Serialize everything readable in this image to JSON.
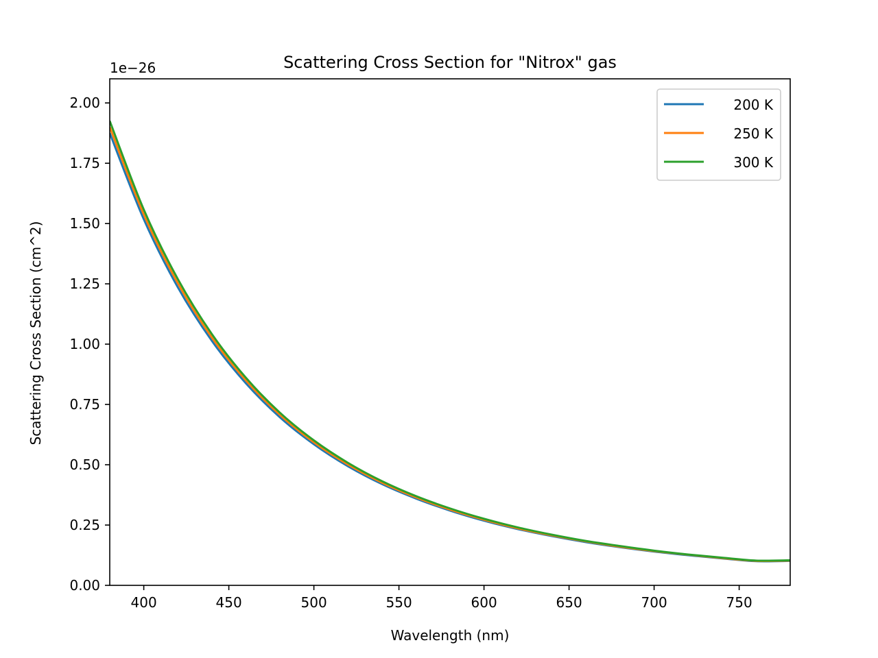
{
  "chart_data": {
    "type": "line",
    "title": "Scattering Cross Section for \"Nitrox\" gas",
    "xlabel": "Wavelength (nm)",
    "ylabel": "Scattering Cross Section (cm^2)",
    "y_offset_label": "1e−26",
    "xlim": [
      380,
      780
    ],
    "ylim": [
      0,
      2.1
    ],
    "xticks": [
      400,
      450,
      500,
      550,
      600,
      650,
      700,
      750
    ],
    "xtick_labels": [
      "400",
      "450",
      "500",
      "550",
      "600",
      "650",
      "700",
      "750"
    ],
    "yticks": [
      0,
      0.25,
      0.5,
      0.75,
      1.0,
      1.25,
      1.5,
      1.75,
      2.0
    ],
    "ytick_labels": [
      "0.00",
      "0.25",
      "0.50",
      "0.75",
      "1.00",
      "1.25",
      "1.50",
      "1.75",
      "2.00"
    ],
    "grid": false,
    "legend_position": "top-right",
    "x": [
      380,
      400,
      420,
      440,
      460,
      480,
      500,
      520,
      540,
      560,
      580,
      600,
      620,
      640,
      660,
      680,
      700,
      720,
      740,
      760,
      780
    ],
    "series": [
      {
        "name": "200 K",
        "color": "#1f77b4",
        "values": [
          1.875,
          1.518,
          1.236,
          1.014,
          0.838,
          0.697,
          0.585,
          0.494,
          0.42,
          0.36,
          0.31,
          0.268,
          0.233,
          0.204,
          0.179,
          0.158,
          0.14,
          0.125,
          0.1115,
          0.1,
          0.1012
        ]
      },
      {
        "name": "250 K",
        "color": "#ff7f0e",
        "values": [
          1.9,
          1.538,
          1.253,
          1.028,
          0.85,
          0.707,
          0.593,
          0.501,
          0.426,
          0.365,
          0.314,
          0.272,
          0.236,
          0.207,
          0.182,
          0.16,
          0.142,
          0.127,
          0.113,
          0.1014,
          0.1026
        ]
      },
      {
        "name": "300 K",
        "color": "#2ca02c",
        "values": [
          1.925,
          1.558,
          1.27,
          1.042,
          0.861,
          0.716,
          0.601,
          0.508,
          0.432,
          0.37,
          0.319,
          0.276,
          0.24,
          0.21,
          0.184,
          0.163,
          0.144,
          0.128,
          0.1146,
          0.1028,
          0.104
        ]
      }
    ]
  }
}
